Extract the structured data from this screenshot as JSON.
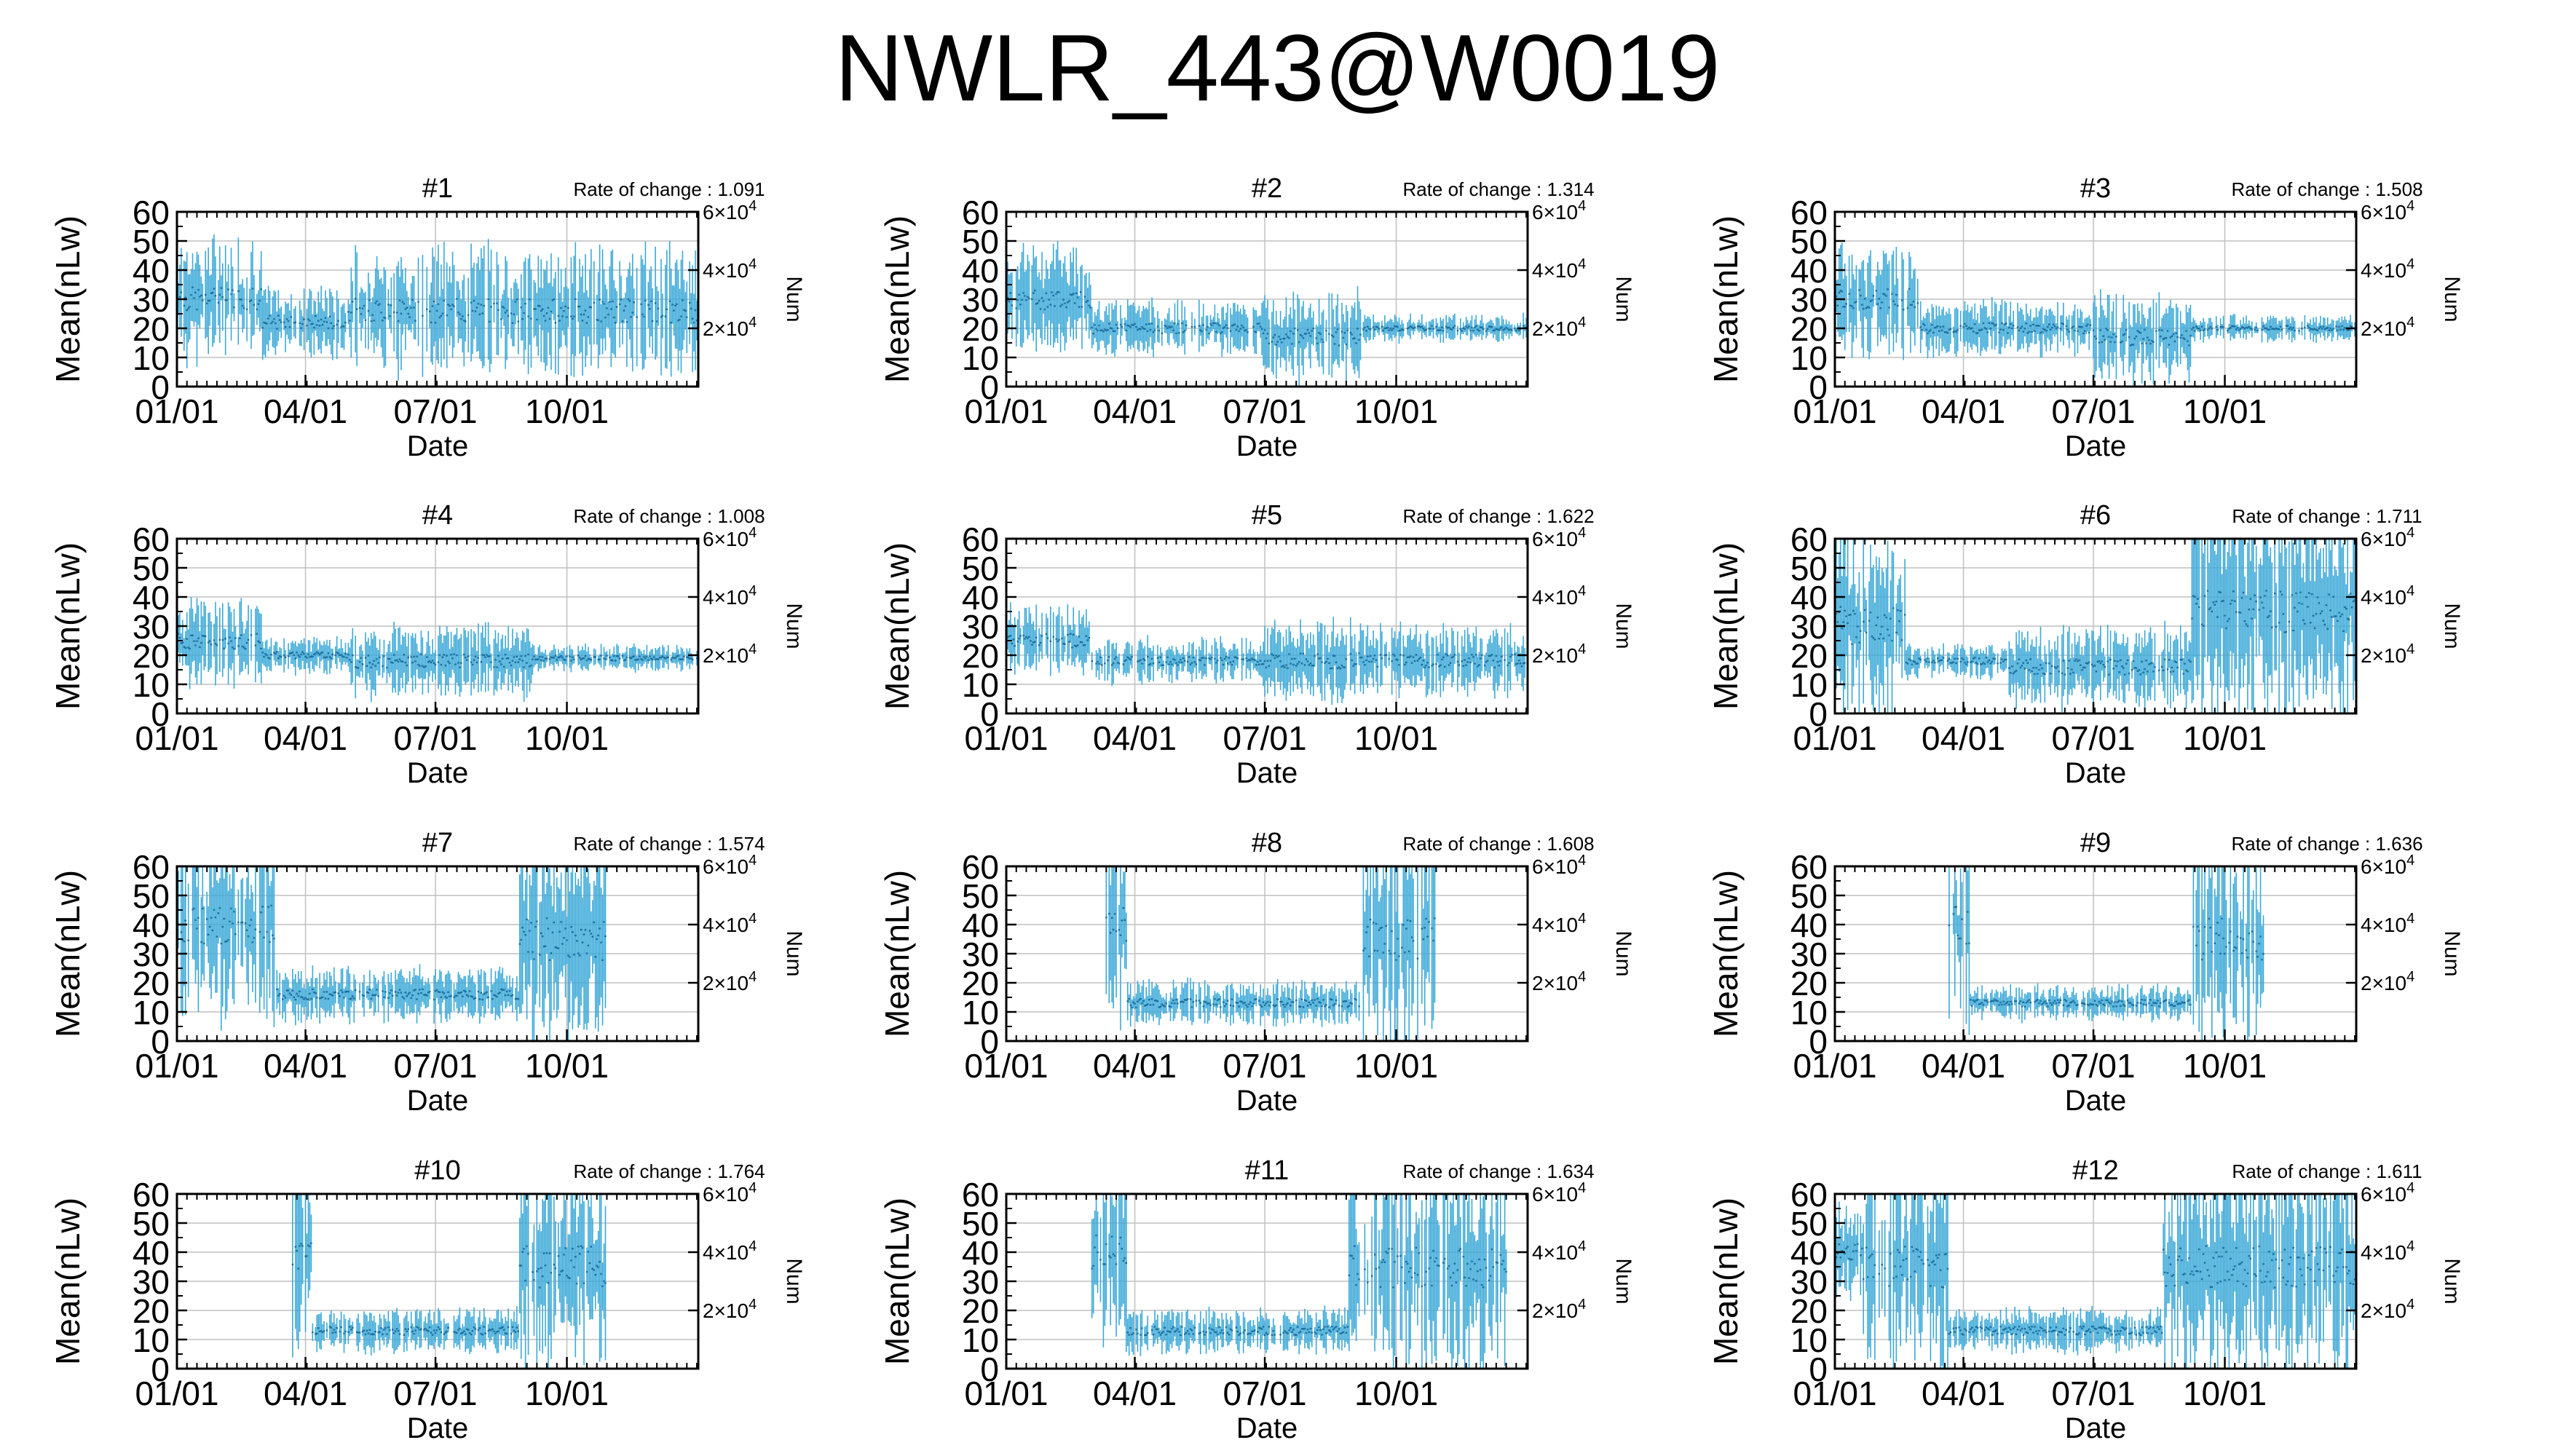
{
  "title": "NWLR_443@W0019",
  "colors": {
    "series": "#3ca9d8",
    "grid": "#c0c0c0",
    "axis": "#000000"
  },
  "common": {
    "ylabel": "Mean(nLw)",
    "xlabel": "Date",
    "y2label": "Num",
    "yticks": [
      "0",
      "10",
      "20",
      "30",
      "40",
      "50",
      "60"
    ],
    "ylim": [
      0,
      60
    ],
    "xticks": [
      "01/01",
      "04/01",
      "07/01",
      "10/01"
    ],
    "xtick_days": [
      0,
      90,
      181,
      273
    ],
    "xlim_days": [
      0,
      365
    ],
    "y2ticks": [
      {
        "value": 60000,
        "mantissa": "6",
        "base": "×10",
        "exp": "4"
      },
      {
        "value": 40000,
        "mantissa": "4",
        "base": "×10",
        "exp": "4"
      },
      {
        "value": 20000,
        "mantissa": "2",
        "base": "×10",
        "exp": "4"
      }
    ],
    "y2lim": [
      0,
      60000
    ],
    "rate_prefix": "Rate of change : "
  },
  "chart_data": [
    {
      "type": "line",
      "title": "#1",
      "rate": "1.091",
      "profile": {
        "lo": 0,
        "hi": 365,
        "segs": [
          [
            0,
            60,
            30,
            14
          ],
          [
            60,
            120,
            22,
            8
          ],
          [
            120,
            365,
            26,
            14
          ]
        ]
      }
    },
    {
      "type": "line",
      "title": "#2",
      "rate": "1.314",
      "profile": {
        "lo": 0,
        "hi": 365,
        "segs": [
          [
            0,
            60,
            30,
            12
          ],
          [
            60,
            180,
            20,
            6
          ],
          [
            180,
            250,
            17,
            10
          ],
          [
            250,
            365,
            20,
            3
          ]
        ]
      }
    },
    {
      "type": "line",
      "title": "#3",
      "rate": "1.508",
      "profile": {
        "lo": 0,
        "hi": 365,
        "segs": [
          [
            0,
            60,
            30,
            12
          ],
          [
            60,
            180,
            20,
            6
          ],
          [
            180,
            250,
            17,
            10
          ],
          [
            250,
            365,
            20,
            3
          ]
        ]
      }
    },
    {
      "type": "line",
      "title": "#4",
      "rate": "1.008",
      "profile": {
        "lo": 0,
        "hi": 365,
        "segs": [
          [
            0,
            60,
            25,
            10
          ],
          [
            60,
            120,
            20,
            4
          ],
          [
            120,
            250,
            18,
            8
          ],
          [
            250,
            365,
            19,
            3
          ]
        ]
      }
    },
    {
      "type": "line",
      "title": "#5",
      "rate": "1.622",
      "profile": {
        "lo": 0,
        "hi": 365,
        "segs": [
          [
            0,
            60,
            25,
            8
          ],
          [
            60,
            180,
            18,
            5
          ],
          [
            180,
            250,
            18,
            9
          ],
          [
            250,
            365,
            18,
            8
          ]
        ]
      }
    },
    {
      "type": "line",
      "title": "#6",
      "rate": "1.711",
      "profile": {
        "lo": 0,
        "hi": 365,
        "segs": [
          [
            0,
            50,
            30,
            22
          ],
          [
            50,
            120,
            18,
            4
          ],
          [
            120,
            250,
            16,
            9
          ],
          [
            250,
            365,
            35,
            24
          ]
        ]
      }
    },
    {
      "type": "line",
      "title": "#7",
      "rate": "1.574",
      "profile": {
        "lo": 0,
        "hi": 300,
        "segs": [
          [
            0,
            70,
            40,
            22
          ],
          [
            70,
            240,
            16,
            6
          ],
          [
            240,
            300,
            35,
            24
          ]
        ]
      }
    },
    {
      "type": "line",
      "title": "#8",
      "rate": "1.608",
      "profile": {
        "lo": 70,
        "hi": 300,
        "segs": [
          [
            70,
            85,
            40,
            22
          ],
          [
            85,
            250,
            13,
            5
          ],
          [
            250,
            300,
            35,
            24
          ]
        ]
      }
    },
    {
      "type": "line",
      "title": "#9",
      "rate": "1.636",
      "profile": {
        "lo": 80,
        "hi": 300,
        "segs": [
          [
            80,
            95,
            40,
            22
          ],
          [
            95,
            250,
            13,
            4
          ],
          [
            250,
            300,
            35,
            24
          ]
        ]
      }
    },
    {
      "type": "line",
      "title": "#10",
      "rate": "1.764",
      "profile": {
        "lo": 80,
        "hi": 300,
        "segs": [
          [
            80,
            95,
            40,
            22
          ],
          [
            95,
            240,
            13,
            5
          ],
          [
            240,
            300,
            35,
            24
          ]
        ]
      }
    },
    {
      "type": "line",
      "title": "#11",
      "rate": "1.634",
      "profile": {
        "lo": 60,
        "hi": 350,
        "segs": [
          [
            60,
            85,
            40,
            22
          ],
          [
            85,
            240,
            13,
            5
          ],
          [
            240,
            350,
            35,
            24
          ]
        ]
      }
    },
    {
      "type": "line",
      "title": "#12",
      "rate": "1.611",
      "profile": {
        "lo": 0,
        "hi": 365,
        "segs": [
          [
            0,
            20,
            40,
            10
          ],
          [
            20,
            80,
            35,
            24
          ],
          [
            80,
            230,
            13,
            5
          ],
          [
            230,
            365,
            35,
            24
          ]
        ]
      }
    }
  ]
}
